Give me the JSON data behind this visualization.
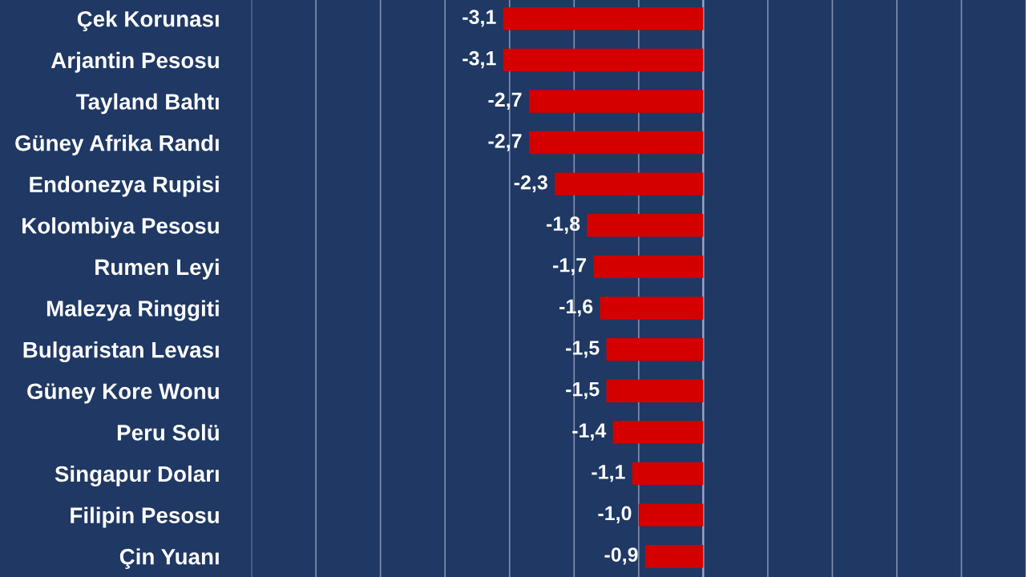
{
  "chart_data": {
    "type": "bar",
    "orientation": "horizontal",
    "categories": [
      "Çek Korunası",
      "Arjantin Pesosu",
      "Tayland Bahtı",
      "Güney Afrika Randı",
      "Endonezya Rupisi",
      "Kolombiya Pesosu",
      "Rumen Leyi",
      "Malezya Ringgiti",
      "Bulgaristan Levası",
      "Güney Kore Wonu",
      "Peru Solü",
      "Singapur Doları",
      "Filipin Pesosu",
      "Çin Yuanı"
    ],
    "values": [
      -3.1,
      -3.1,
      -2.7,
      -2.7,
      -2.3,
      -1.8,
      -1.7,
      -1.6,
      -1.5,
      -1.5,
      -1.4,
      -1.1,
      -1.0,
      -0.9
    ],
    "value_labels": [
      "-3,1",
      "-3,1",
      "-2,7",
      "-2,7",
      "-2,3",
      "-1,8",
      "-1,7",
      "-1,6",
      "-1,5",
      "-1,5",
      "-1,4",
      "-1,1",
      "-1,0",
      "-0,9"
    ],
    "color": "#d40000",
    "xlim": [
      -7,
      5
    ],
    "xticks": [
      {
        "value": -7,
        "label": null
      },
      {
        "value": -6,
        "label": null
      },
      {
        "value": -5,
        "label": null
      },
      {
        "value": -4,
        "label": null
      },
      {
        "value": -3,
        "label": null
      },
      {
        "value": -2,
        "label": null
      },
      {
        "value": -1,
        "label": null
      },
      {
        "value": 0,
        "label": null
      },
      {
        "value": 1,
        "label": null
      },
      {
        "value": 2,
        "label": null
      },
      {
        "value": 3,
        "label": null
      },
      {
        "value": 4,
        "label": null
      },
      {
        "value": 5,
        "label": null
      }
    ],
    "grid": "x",
    "tick_labels": "y",
    "legend": false
  }
}
